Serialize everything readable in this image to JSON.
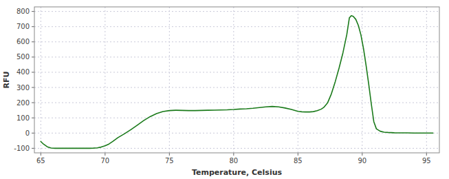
{
  "chart_data": {
    "type": "line",
    "xlabel": "Temperature, Celsius",
    "ylabel": "RFU",
    "x": [
      65.0,
      65.2,
      65.5,
      65.8,
      66.1,
      66.4,
      66.7,
      67.0,
      67.3,
      67.6,
      67.9,
      68.2,
      68.5,
      68.8,
      69.1,
      69.4,
      69.7,
      70.0,
      70.3,
      70.6,
      71.0,
      71.5,
      72.0,
      72.5,
      73.0,
      73.5,
      74.0,
      74.5,
      75.0,
      75.5,
      76.0,
      76.5,
      77.0,
      77.5,
      78.0,
      78.5,
      79.0,
      79.5,
      80.0,
      80.5,
      81.0,
      81.5,
      82.0,
      82.5,
      83.0,
      83.5,
      84.0,
      84.5,
      85.0,
      85.3,
      85.6,
      85.9,
      86.2,
      86.5,
      86.8,
      87.0,
      87.3,
      87.6,
      87.9,
      88.2,
      88.5,
      88.8,
      89.0,
      89.15,
      89.3,
      89.5,
      89.7,
      89.9,
      90.1,
      90.3,
      90.5,
      90.7,
      90.9,
      91.1,
      91.4,
      91.7,
      92.0,
      92.5,
      93.0,
      93.5,
      94.0,
      94.5,
      95.0,
      95.5
    ],
    "values": [
      -55,
      -72,
      -90,
      -98,
      -100,
      -100,
      -100,
      -100,
      -100,
      -100,
      -100,
      -100,
      -100,
      -100,
      -99,
      -97,
      -92,
      -84,
      -72,
      -55,
      -30,
      -5,
      22,
      52,
      82,
      108,
      128,
      142,
      148,
      150,
      149,
      148,
      148,
      149,
      150,
      151,
      152,
      153,
      155,
      158,
      160,
      163,
      168,
      172,
      175,
      172,
      165,
      155,
      143,
      140,
      139,
      139,
      141,
      147,
      157,
      168,
      198,
      258,
      338,
      428,
      528,
      648,
      758,
      772,
      768,
      748,
      708,
      645,
      555,
      445,
      325,
      195,
      75,
      28,
      12,
      6,
      4,
      2,
      1,
      1,
      0,
      0,
      0,
      0
    ],
    "color": "#1a7a1a",
    "xlim": [
      64.5,
      96.0
    ],
    "ylim": [
      -130,
      830
    ],
    "xticks": [
      65,
      70,
      75,
      80,
      85,
      90,
      95
    ],
    "yticks": [
      -100,
      0,
      100,
      200,
      300,
      400,
      500,
      600,
      700,
      800
    ],
    "grid": true
  }
}
